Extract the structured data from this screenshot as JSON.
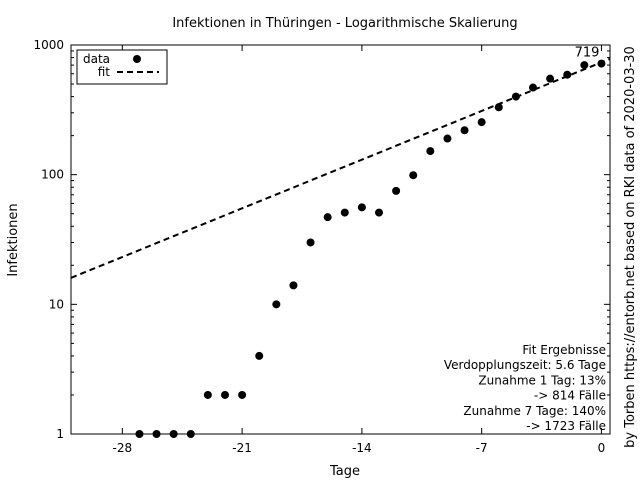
{
  "chart_data": {
    "type": "scatter",
    "title": "Infektionen in Thüringen - Logarithmische Skalierung",
    "xlabel": "Tage",
    "ylabel": "Infektionen",
    "right_label": "by Torben https://entorb.net based on RKI data of 2020-03-30",
    "y_scale": "log",
    "xlim": [
      -31,
      0.5
    ],
    "ylim": [
      1,
      1000
    ],
    "x_ticks": [
      -28,
      -21,
      -14,
      -7,
      0
    ],
    "y_ticks": [
      1,
      10,
      100,
      1000
    ],
    "grid": false,
    "legend": {
      "placement": "top-left",
      "entries": [
        {
          "label": "data",
          "style": "points"
        },
        {
          "label": "fit",
          "style": "dashed-line"
        }
      ]
    },
    "series": [
      {
        "name": "data",
        "x": [
          -27,
          -26,
          -25,
          -24,
          -23,
          -22,
          -21,
          -20,
          -19,
          -18,
          -17,
          -16,
          -15,
          -14,
          -13,
          -12,
          -11,
          -10,
          -9,
          -8,
          -7,
          -6,
          -5,
          -4,
          -3,
          -2,
          -1,
          0
        ],
        "y": [
          1,
          1,
          1,
          1,
          2,
          2,
          2,
          4,
          10,
          14,
          30,
          47,
          51,
          56,
          51,
          75,
          99,
          152,
          190,
          220,
          254,
          331,
          400,
          470,
          550,
          590,
          700,
          719
        ]
      },
      {
        "name": "fit",
        "style": "dashed",
        "x": [
          -31,
          0.5
        ],
        "y": [
          16,
          782
        ]
      }
    ],
    "annotations": {
      "last_value": "719",
      "fit_results": [
        "Fit Ergebnisse",
        "Verdopplungszeit: 5.6 Tage",
        "Zunahme 1 Tag: 13%",
        "-> 814 Fälle",
        "Zunahme 7 Tage: 140%",
        "-> 1723 Fälle"
      ]
    }
  }
}
